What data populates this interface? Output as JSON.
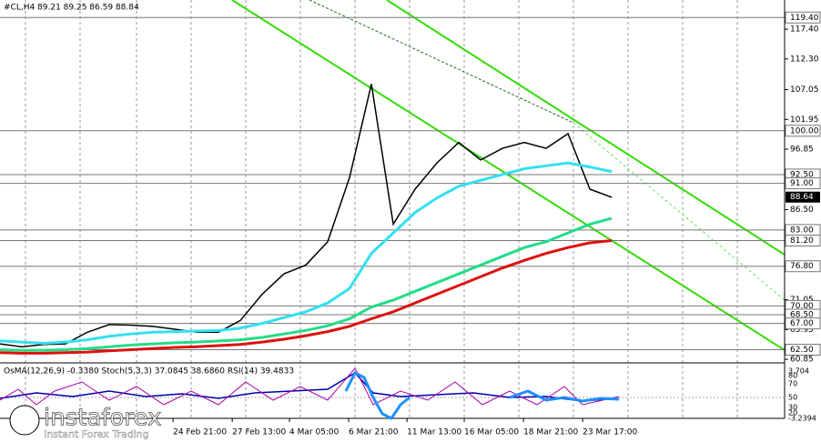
{
  "chart_data": {
    "type": "line",
    "title": "#CL,H4  89.21 89.25 86.59 88.84",
    "x": [
      0,
      1,
      2,
      3,
      4,
      5,
      6,
      7,
      8,
      9,
      10,
      11,
      12,
      13,
      14,
      15,
      16,
      17,
      18,
      19,
      20,
      21,
      22,
      23,
      24,
      25,
      26,
      27,
      28
    ],
    "xlim": [
      0,
      35.83
    ],
    "xticks": [
      {
        "value": 7.92,
        "label": "24 Feb 21:00"
      },
      {
        "value": 10.63,
        "label": "27 Feb 13:00"
      },
      {
        "value": 13.25,
        "label": "4 Mar 05:00"
      },
      {
        "value": 15.96,
        "label": "6 Mar 21:00"
      },
      {
        "value": 18.63,
        "label": "11 Mar 13:00"
      },
      {
        "value": 21.25,
        "label": "16 Mar 05:00"
      },
      {
        "value": 23.96,
        "label": "18 Mar 21:00"
      },
      {
        "value": 26.67,
        "label": "23 Mar 17:00"
      }
    ],
    "ylim": [
      60.4,
      122.4
    ],
    "yticks": [
      {
        "value": 117.4,
        "label": "117.40"
      },
      {
        "value": 112.3,
        "label": "112.30"
      },
      {
        "value": 107.05,
        "label": "107.05"
      },
      {
        "value": 101.95,
        "label": "101.95"
      },
      {
        "value": 96.85,
        "label": "96.85"
      },
      {
        "value": 86.5,
        "label": "86.50"
      },
      {
        "value": 71.05,
        "label": "71.05"
      },
      {
        "value": 65.95,
        "label": "65.95"
      },
      {
        "value": 60.85,
        "label": "60.85"
      }
    ],
    "levels": [
      {
        "value": 119.4,
        "label": "119.40"
      },
      {
        "value": 100,
        "label": "100.00"
      },
      {
        "value": 92.5,
        "label": "92.50"
      },
      {
        "value": 91,
        "label": "91.00"
      },
      {
        "value": 83,
        "label": "83.00"
      },
      {
        "value": 81.2,
        "label": "81.20"
      },
      {
        "value": 76.8,
        "label": "76.80"
      },
      {
        "value": 70,
        "label": "70.00"
      },
      {
        "value": 68.5,
        "label": "68.50"
      },
      {
        "value": 67,
        "label": "67.00"
      },
      {
        "value": 62.5,
        "label": "62.50"
      }
    ],
    "current_price": {
      "value": 88.64,
      "label": "88.64"
    },
    "series": [
      {
        "name": "Price",
        "color": "#000000",
        "values": [
          63.5,
          63.0,
          63.4,
          63.5,
          65.5,
          66.8,
          66.7,
          66.5,
          66.0,
          65.5,
          65.5,
          67.5,
          72.0,
          75.5,
          77.0,
          81.0,
          92.0,
          108.0,
          84.0,
          90.0,
          94.5,
          98.0,
          95.0,
          97.0,
          98.0,
          97.0,
          99.5,
          90.0,
          88.6
        ]
      },
      {
        "name": "Fast MA",
        "color": "#33e0f0",
        "values": [
          64,
          63.8,
          63.6,
          63.8,
          64.2,
          64.8,
          65.2,
          65.5,
          65.6,
          65.7,
          65.8,
          66.2,
          67,
          68,
          69,
          70.5,
          73,
          79,
          82.5,
          86,
          88.5,
          90.5,
          91.5,
          92.5,
          93.5,
          94,
          94.5,
          93.8,
          93
        ]
      },
      {
        "name": "Medium MA",
        "color": "#22dd88",
        "values": [
          62.5,
          62.4,
          62.4,
          62.5,
          62.7,
          63,
          63.3,
          63.5,
          63.7,
          63.8,
          64,
          64.2,
          64.6,
          65.2,
          65.8,
          66.6,
          67.8,
          69.8,
          71,
          72.5,
          74,
          75.5,
          77,
          78.5,
          80,
          81,
          82.5,
          84,
          85
        ]
      },
      {
        "name": "Slow MA",
        "color": "#dd1111",
        "values": [
          62,
          61.9,
          61.9,
          62,
          62.1,
          62.3,
          62.5,
          62.7,
          62.9,
          63.0,
          63.2,
          63.4,
          63.8,
          64.3,
          64.9,
          65.6,
          66.5,
          67.8,
          69,
          70.5,
          72,
          73.5,
          75,
          76.5,
          77.8,
          79,
          80,
          80.8,
          81.2
        ]
      }
    ],
    "indicator_title": "OsMA(12,26,9) -0.3380  Stoch(5,3,3) 37.0845 38.6860  RSI(14) 39.4833",
    "indicator_axis": [
      "3.704",
      "80",
      "70",
      "50",
      "30",
      "20",
      "-3.2394"
    ],
    "logo": "instaforex",
    "logo_subtitle": "Instant Forex Trading"
  }
}
